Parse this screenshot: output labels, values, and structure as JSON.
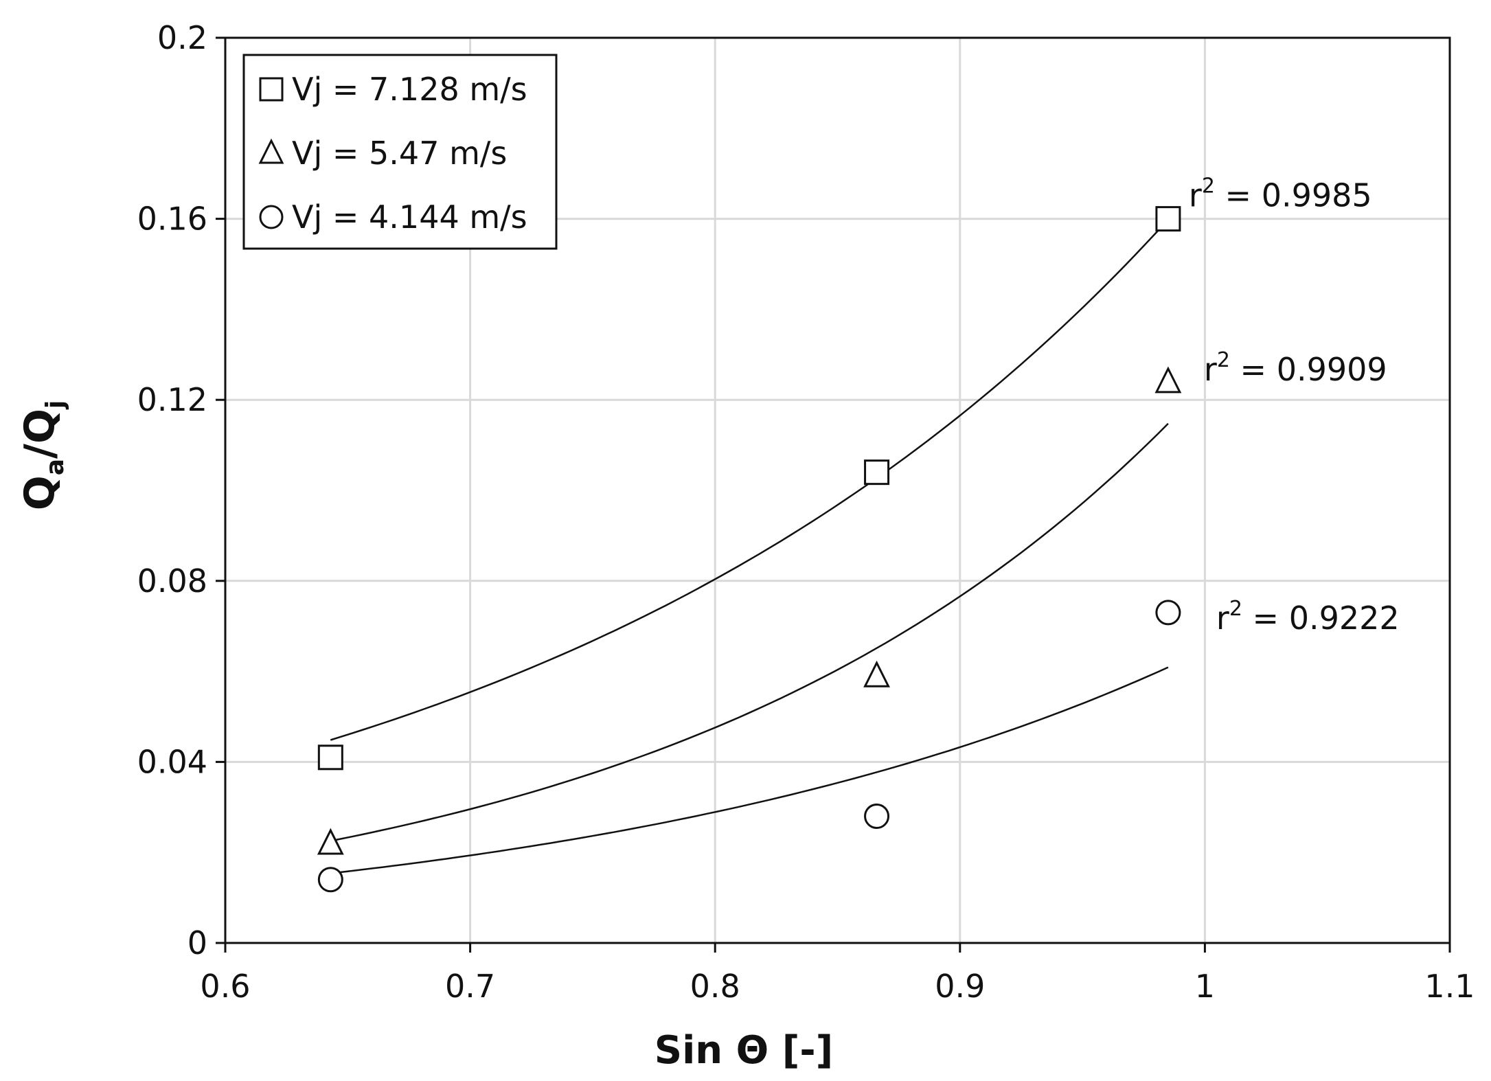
{
  "chart_data": {
    "type": "scatter",
    "xlabel": "Sin Θ [-]",
    "ylabel": {
      "main": "Q",
      "sub_a": "a",
      "slash": "/Q",
      "sub_j": "j"
    },
    "xlim": [
      0.6,
      1.1
    ],
    "ylim": [
      0,
      0.2
    ],
    "xticks": [
      0.6,
      0.7,
      0.8,
      0.9,
      1,
      1.1
    ],
    "xtick_labels": [
      "0.6",
      "0.7",
      "0.8",
      "0.9",
      "1",
      "1.1"
    ],
    "yticks": [
      0,
      0.04,
      0.08,
      0.12,
      0.16,
      0.2
    ],
    "ytick_labels": [
      "0",
      "0.04",
      "0.08",
      "0.12",
      "0.16",
      "0.2"
    ],
    "grid": true,
    "legend_position": "top-left",
    "series": [
      {
        "name": "Vj = 7.128 m/s",
        "marker": "square",
        "x": [
          0.643,
          0.866,
          0.985
        ],
        "y": [
          0.041,
          0.104,
          0.16
        ],
        "trend": {
          "a": 0.004113,
          "b": 3.7156
        },
        "r2_prefix": "r",
        "r2_sup": "2",
        "r2_value": " = 0.9985"
      },
      {
        "name": "Vj = 5.47 m/s",
        "marker": "triangle",
        "x": [
          0.643,
          0.866,
          0.985
        ],
        "y": [
          0.022,
          0.059,
          0.124
        ],
        "trend": {
          "a": 0.001057,
          "b": 4.7588
        },
        "r2_prefix": "r",
        "r2_sup": "2",
        "r2_value": " = 0.9909"
      },
      {
        "name": "Vj = 4.144 m/s",
        "marker": "circle",
        "x": [
          0.643,
          0.866,
          0.985
        ],
        "y": [
          0.014,
          0.028,
          0.073
        ],
        "trend": {
          "a": 0.001156,
          "b": 4.0247
        },
        "r2_prefix": "r",
        "r2_sup": "2",
        "r2_value": " = 0.9222"
      }
    ]
  }
}
